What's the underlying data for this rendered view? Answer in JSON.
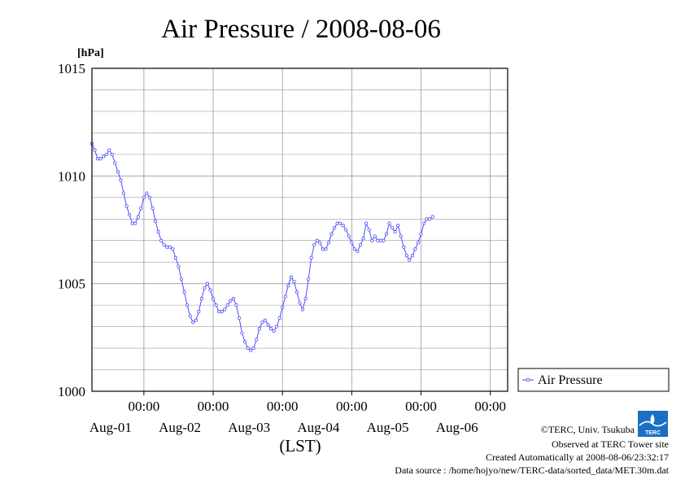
{
  "chart_data": {
    "type": "line",
    "title": "Air Pressure / 2008-08-06",
    "unit_label": "[hPa]",
    "xlabel": "(LST)",
    "ylim": [
      1000,
      1015
    ],
    "yticks": [
      1000,
      1005,
      1010,
      1015
    ],
    "xlim_hours": [
      -18,
      126
    ],
    "x_units": "hours from 2008-08-01 00:00 LST",
    "xticks": [
      {
        "time_label": "00:00",
        "date_label": "Aug-01"
      },
      {
        "time_label": "00:00",
        "date_label": "Aug-02"
      },
      {
        "time_label": "00:00",
        "date_label": "Aug-03"
      },
      {
        "time_label": "00:00",
        "date_label": "Aug-04"
      },
      {
        "time_label": "00:00",
        "date_label": "Aug-05"
      },
      {
        "time_label": "00:00",
        "date_label": "Aug-06"
      }
    ],
    "grid": true,
    "legend_position": "right-bottom",
    "series": [
      {
        "name": "Air Pressure",
        "color": "#3a3aff",
        "points": [
          [
            -18,
            1011.5
          ],
          [
            -17,
            1011.2
          ],
          [
            -16,
            1010.8
          ],
          [
            -15,
            1010.8
          ],
          [
            -14,
            1010.9
          ],
          [
            -13,
            1011.0
          ],
          [
            -12,
            1011.2
          ],
          [
            -11,
            1011.0
          ],
          [
            -10,
            1010.6
          ],
          [
            -9,
            1010.2
          ],
          [
            -8,
            1009.8
          ],
          [
            -7,
            1009.2
          ],
          [
            -6,
            1008.6
          ],
          [
            -5,
            1008.2
          ],
          [
            -4,
            1007.8
          ],
          [
            -3,
            1007.8
          ],
          [
            -2,
            1008.1
          ],
          [
            -1,
            1008.5
          ],
          [
            0,
            1009.0
          ],
          [
            1,
            1009.2
          ],
          [
            2,
            1009.0
          ],
          [
            3,
            1008.5
          ],
          [
            4,
            1007.9
          ],
          [
            5,
            1007.4
          ],
          [
            6,
            1007.0
          ],
          [
            7,
            1006.8
          ],
          [
            8,
            1006.7
          ],
          [
            9,
            1006.7
          ],
          [
            10,
            1006.6
          ],
          [
            11,
            1006.2
          ],
          [
            12,
            1005.8
          ],
          [
            13,
            1005.2
          ],
          [
            14,
            1004.6
          ],
          [
            15,
            1004.0
          ],
          [
            16,
            1003.5
          ],
          [
            17,
            1003.2
          ],
          [
            18,
            1003.3
          ],
          [
            19,
            1003.7
          ],
          [
            20,
            1004.3
          ],
          [
            21,
            1004.8
          ],
          [
            22,
            1005.0
          ],
          [
            23,
            1004.7
          ],
          [
            24,
            1004.3
          ],
          [
            25,
            1004.0
          ],
          [
            26,
            1003.7
          ],
          [
            27,
            1003.7
          ],
          [
            28,
            1003.8
          ],
          [
            29,
            1004.0
          ],
          [
            30,
            1004.2
          ],
          [
            31,
            1004.3
          ],
          [
            32,
            1004.0
          ],
          [
            33,
            1003.4
          ],
          [
            34,
            1002.7
          ],
          [
            35,
            1002.3
          ],
          [
            36,
            1002.0
          ],
          [
            37,
            1001.9
          ],
          [
            38,
            1002.0
          ],
          [
            39,
            1002.4
          ],
          [
            40,
            1002.9
          ],
          [
            41,
            1003.2
          ],
          [
            42,
            1003.3
          ],
          [
            43,
            1003.1
          ],
          [
            44,
            1002.9
          ],
          [
            45,
            1002.8
          ],
          [
            46,
            1003.0
          ],
          [
            47,
            1003.4
          ],
          [
            48,
            1003.9
          ],
          [
            49,
            1004.4
          ],
          [
            50,
            1004.9
          ],
          [
            51,
            1005.3
          ],
          [
            52,
            1005.1
          ],
          [
            53,
            1004.6
          ],
          [
            54,
            1004.1
          ],
          [
            55,
            1003.8
          ],
          [
            56,
            1004.3
          ],
          [
            57,
            1005.2
          ],
          [
            58,
            1006.2
          ],
          [
            59,
            1006.8
          ],
          [
            60,
            1007.0
          ],
          [
            61,
            1006.9
          ],
          [
            62,
            1006.6
          ],
          [
            63,
            1006.6
          ],
          [
            64,
            1006.9
          ],
          [
            65,
            1007.3
          ],
          [
            66,
            1007.6
          ],
          [
            67,
            1007.8
          ],
          [
            68,
            1007.8
          ],
          [
            69,
            1007.7
          ],
          [
            70,
            1007.5
          ],
          [
            71,
            1007.2
          ],
          [
            72,
            1006.9
          ],
          [
            73,
            1006.6
          ],
          [
            74,
            1006.5
          ],
          [
            75,
            1006.8
          ],
          [
            76,
            1007.1
          ],
          [
            77,
            1007.8
          ],
          [
            78,
            1007.5
          ],
          [
            79,
            1007.0
          ],
          [
            80,
            1007.2
          ],
          [
            81,
            1007.0
          ],
          [
            82,
            1007.0
          ],
          [
            83,
            1007.0
          ],
          [
            84,
            1007.3
          ],
          [
            85,
            1007.8
          ],
          [
            86,
            1007.6
          ],
          [
            87,
            1007.4
          ],
          [
            88,
            1007.7
          ],
          [
            89,
            1007.2
          ],
          [
            90,
            1006.7
          ],
          [
            91,
            1006.3
          ],
          [
            92,
            1006.1
          ],
          [
            93,
            1006.3
          ],
          [
            94,
            1006.6
          ],
          [
            95,
            1006.9
          ],
          [
            96,
            1007.3
          ],
          [
            97,
            1007.8
          ],
          [
            98,
            1008.0
          ],
          [
            99,
            1008.0
          ],
          [
            100,
            1008.1
          ]
        ]
      }
    ]
  },
  "credits": {
    "copyright": "©TERC, Univ. Tsukuba",
    "observed": "Observed at TERC Tower site",
    "created": "Created Automatically at 2008-08-06/23:32:17",
    "source": "Data source : /home/hojyo/new/TERC-data/sorted_data/MET.30m.dat"
  },
  "logo": {
    "text": "TERC",
    "icon": "terc-logo-icon",
    "color": "#1a6fc4"
  },
  "colors": {
    "grid": "#9a9a9a",
    "frame": "#000000",
    "series": "#3a3aff"
  }
}
